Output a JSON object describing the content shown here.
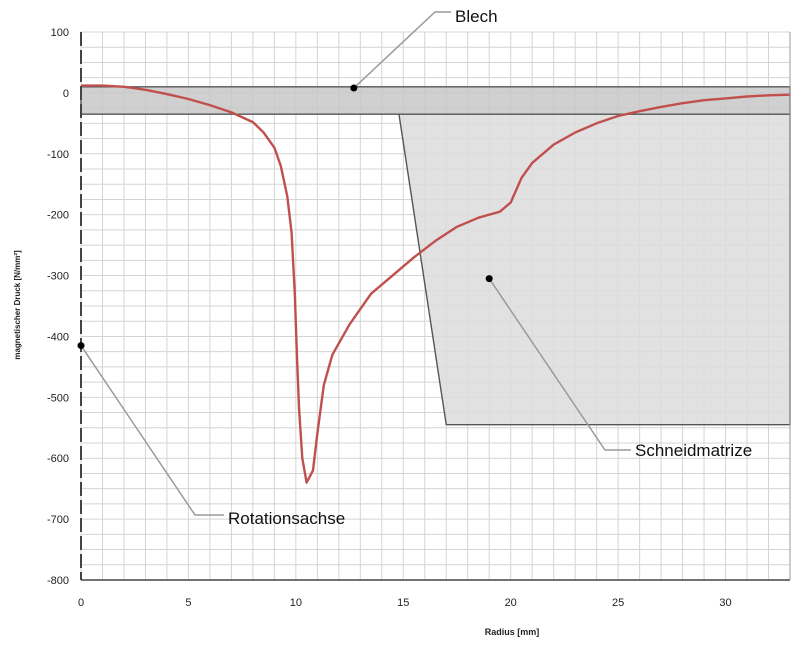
{
  "chart_data": {
    "type": "line",
    "xlabel": "Radius [mm]",
    "ylabel": "magnetischer Druck [N/mm²]",
    "xlim": [
      0,
      33
    ],
    "ylim": [
      -800,
      100
    ],
    "xticks": [
      0,
      5,
      10,
      15,
      20,
      25,
      30
    ],
    "yticks": [
      100,
      0,
      -100,
      -200,
      -300,
      -400,
      -500,
      -600,
      -700,
      -800
    ],
    "grid": true,
    "series": [
      {
        "color": "#c0504d",
        "points": [
          [
            0,
            12
          ],
          [
            1,
            12
          ],
          [
            2,
            10
          ],
          [
            3,
            5
          ],
          [
            4,
            -2
          ],
          [
            5,
            -10
          ],
          [
            6,
            -20
          ],
          [
            7,
            -32
          ],
          [
            8,
            -48
          ],
          [
            8.5,
            -65
          ],
          [
            9,
            -90
          ],
          [
            9.3,
            -120
          ],
          [
            9.6,
            -170
          ],
          [
            9.8,
            -230
          ],
          [
            9.95,
            -330
          ],
          [
            10.05,
            -430
          ],
          [
            10.15,
            -520
          ],
          [
            10.3,
            -600
          ],
          [
            10.5,
            -640
          ],
          [
            10.8,
            -620
          ],
          [
            11,
            -560
          ],
          [
            11.3,
            -480
          ],
          [
            11.7,
            -430
          ],
          [
            12.5,
            -380
          ],
          [
            13.5,
            -330
          ],
          [
            14.5,
            -300
          ],
          [
            15.5,
            -270
          ],
          [
            16.5,
            -243
          ],
          [
            17.5,
            -220
          ],
          [
            18.5,
            -205
          ],
          [
            19.5,
            -195
          ],
          [
            20,
            -180
          ],
          [
            20.5,
            -140
          ],
          [
            21,
            -115
          ],
          [
            22,
            -85
          ],
          [
            23,
            -65
          ],
          [
            24,
            -50
          ],
          [
            25,
            -38
          ],
          [
            26,
            -30
          ],
          [
            27,
            -23
          ],
          [
            28,
            -17
          ],
          [
            29,
            -12
          ],
          [
            30,
            -9
          ],
          [
            31,
            -6
          ],
          [
            32,
            -4
          ],
          [
            33,
            -3
          ]
        ]
      }
    ],
    "regions": [
      {
        "label": "Blech",
        "polygon": [
          [
            0,
            10
          ],
          [
            33,
            10
          ],
          [
            33,
            -35
          ],
          [
            0,
            -35
          ]
        ],
        "fill": "#c8c8c8"
      },
      {
        "label": "Schneidmatrize",
        "polygon": [
          [
            14.8,
            -35
          ],
          [
            33,
            -35
          ],
          [
            33,
            -545
          ],
          [
            17,
            -545
          ]
        ],
        "fill": "#dcdcdc"
      }
    ],
    "annotations": [
      {
        "text": "Blech",
        "point": [
          12.7,
          8
        ]
      },
      {
        "text": "Schneidmatrize",
        "point": [
          19,
          -305
        ]
      },
      {
        "text": "Rotationsachse",
        "point": [
          0,
          -415
        ]
      }
    ]
  }
}
